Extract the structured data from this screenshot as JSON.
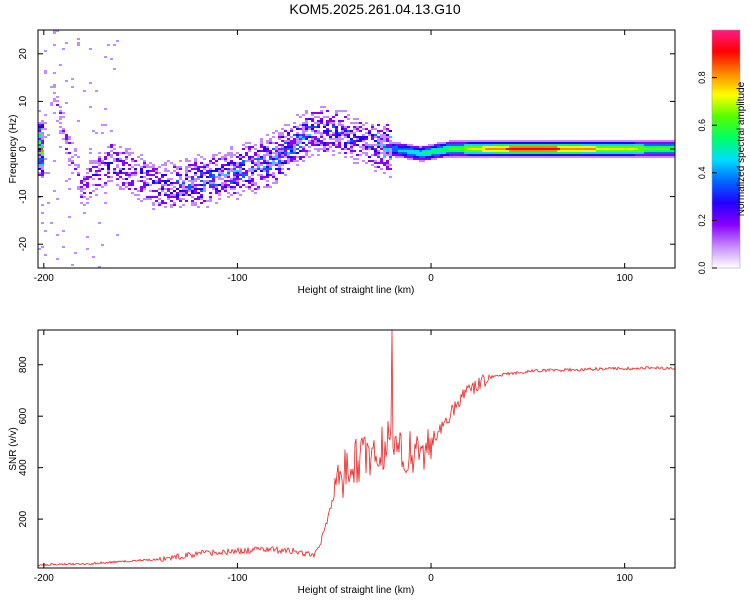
{
  "title": "KOM5.2025.261.04.13.G10",
  "chart_data": [
    {
      "type": "heatmap",
      "title": "KOM5.2025.261.04.13.G10",
      "xlabel": "Height of straight line (km)",
      "ylabel": "Frequency (Hz)",
      "xlim": [
        -203,
        126
      ],
      "ylim": [
        -25,
        25
      ],
      "xticks": [
        -200,
        -100,
        0,
        100
      ],
      "yticks": [
        -20,
        -10,
        0,
        10,
        20
      ],
      "xtick_labels": [
        "-200",
        "-100",
        "0",
        "100"
      ],
      "ytick_labels": [
        "-20",
        "-10",
        "0",
        "10",
        "20"
      ],
      "colorbar": {
        "label": "Normalized spectral amplitude",
        "range": [
          0,
          1
        ],
        "ticks": [
          0.0,
          0.2,
          0.4,
          0.6,
          0.8
        ],
        "tick_labels": [
          "0.0",
          "0.2",
          "0.4",
          "0.6",
          "0.8"
        ],
        "colors": [
          "#ffffff",
          "#c58cff",
          "#8800ff",
          "#2200ff",
          "#0066ff",
          "#00ddff",
          "#00ff66",
          "#55ff00",
          "#ffff00",
          "#ff8800",
          "#ff0000",
          "#ff1a88"
        ]
      },
      "ridge": [
        {
          "x": -200,
          "f": 17,
          "a": 0.1
        },
        {
          "x": -180,
          "f": -8,
          "a": 0.15
        },
        {
          "x": -165,
          "f": -3,
          "a": 0.2
        },
        {
          "x": -140,
          "f": -8,
          "a": 0.22
        },
        {
          "x": -120,
          "f": -7,
          "a": 0.28
        },
        {
          "x": -100,
          "f": -5,
          "a": 0.3
        },
        {
          "x": -80,
          "f": -2,
          "a": 0.32
        },
        {
          "x": -65,
          "f": 3,
          "a": 0.3
        },
        {
          "x": -50,
          "f": 4,
          "a": 0.25
        },
        {
          "x": -35,
          "f": 1,
          "a": 0.22
        },
        {
          "x": -20,
          "f": 0,
          "a": 0.4
        },
        {
          "x": -5,
          "f": -1,
          "a": 0.5
        },
        {
          "x": 10,
          "f": 0,
          "a": 0.6
        },
        {
          "x": 30,
          "f": 0,
          "a": 0.8
        },
        {
          "x": 50,
          "f": 0,
          "a": 0.95
        },
        {
          "x": 70,
          "f": 0,
          "a": 0.85
        },
        {
          "x": 90,
          "f": 0,
          "a": 0.75
        },
        {
          "x": 126,
          "f": 0,
          "a": 0.6
        }
      ]
    },
    {
      "type": "line",
      "xlabel": "Height of straight line (km)",
      "ylabel": "SNR (v/v)",
      "xlim": [
        -203,
        126
      ],
      "ylim": [
        10,
        935
      ],
      "xticks": [
        -200,
        -100,
        0,
        100
      ],
      "yticks": [
        200,
        400,
        600,
        800
      ],
      "xtick_labels": [
        "-200",
        "-100",
        "0",
        "100"
      ],
      "ytick_labels": [
        "200",
        "400",
        "600",
        "800"
      ],
      "color": "#ee2222",
      "series": [
        {
          "name": "SNR",
          "x": [
            -203,
            -190,
            -180,
            -170,
            -160,
            -150,
            -140,
            -130,
            -120,
            -110,
            -100,
            -90,
            -80,
            -70,
            -60,
            -55,
            -50,
            -45,
            -40,
            -35,
            -30,
            -25,
            -22,
            -20,
            -18,
            -15,
            -10,
            -5,
            0,
            5,
            10,
            15,
            20,
            25,
            30,
            40,
            50,
            60,
            70,
            80,
            90,
            100,
            110,
            120,
            126
          ],
          "y": [
            20,
            25,
            25,
            30,
            35,
            40,
            45,
            55,
            65,
            70,
            75,
            80,
            80,
            75,
            60,
            150,
            300,
            380,
            420,
            440,
            460,
            480,
            500,
            520,
            500,
            480,
            450,
            470,
            500,
            560,
            610,
            670,
            700,
            730,
            750,
            765,
            775,
            778,
            780,
            782,
            785,
            785,
            788,
            786,
            788
          ]
        }
      ],
      "spike": {
        "x": -20,
        "y": 935
      }
    }
  ]
}
